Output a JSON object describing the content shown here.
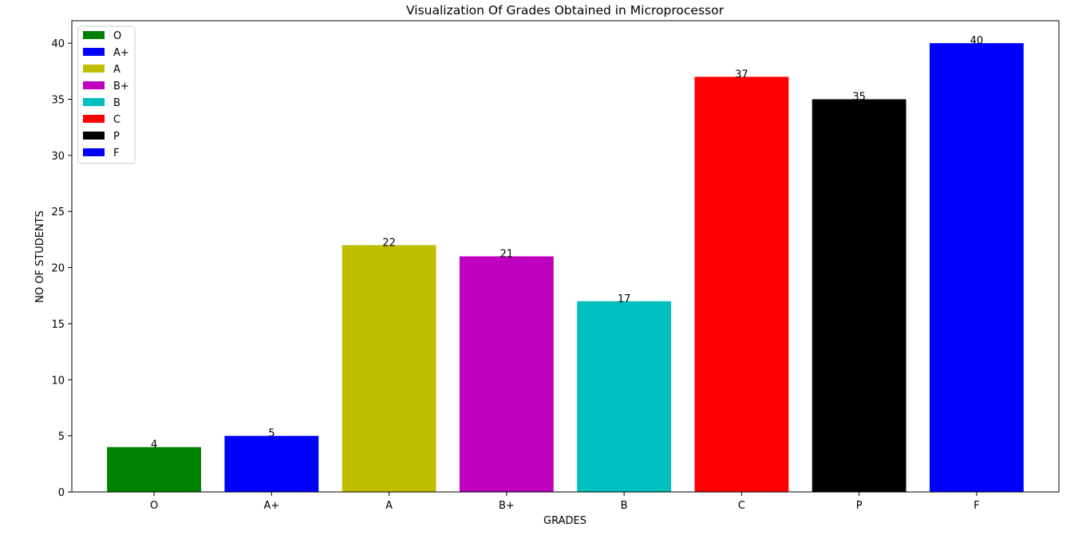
{
  "chart_data": {
    "type": "bar",
    "title": "Visualization Of Grades Obtained in Microprocessor",
    "xlabel": "GRADES",
    "ylabel": "NO OF STUDENTS",
    "categories": [
      "O",
      "A+",
      "A",
      "B+",
      "B",
      "C",
      "P",
      "F"
    ],
    "values": [
      4,
      5,
      22,
      21,
      17,
      37,
      35,
      40
    ],
    "colors": [
      "#008000",
      "#0000ff",
      "#bfbf00",
      "#bf00bf",
      "#00bfbf",
      "#ff0000",
      "#000000",
      "#0000ff"
    ],
    "ylim": [
      0,
      42
    ],
    "yticks": [
      0,
      5,
      10,
      15,
      20,
      25,
      30,
      35,
      40
    ],
    "grid": false,
    "legend": {
      "position": "top-left",
      "entries": [
        "O",
        "A+",
        "A",
        "B+",
        "B",
        "C",
        "P",
        "F"
      ]
    }
  }
}
